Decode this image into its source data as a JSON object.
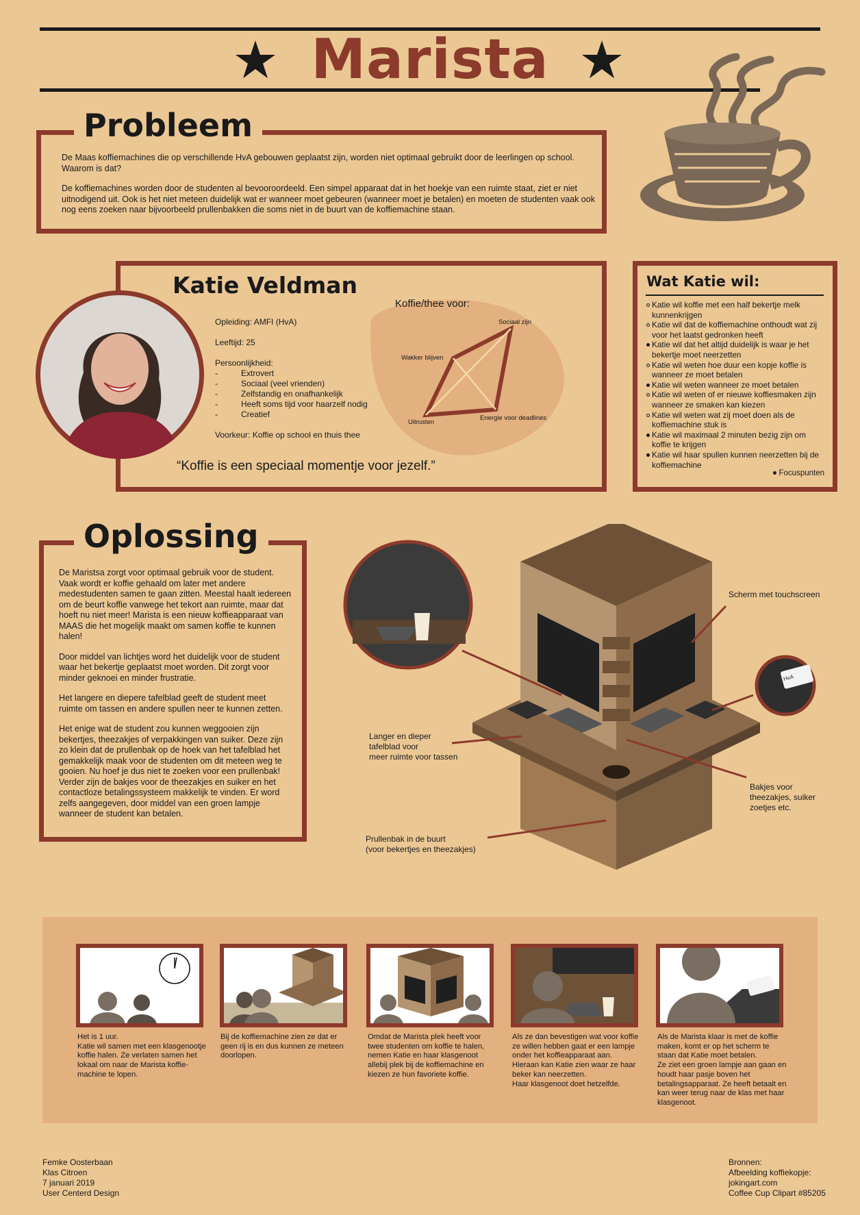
{
  "header": {
    "title": "Marista"
  },
  "probleem": {
    "heading": "Probleem",
    "p1": "De Maas koffiemachines die op verschillende HvA gebouwen geplaatst zijn, worden niet optimaal gebruikt door de leerlingen op school. Waarom is dat?",
    "p2": "De koffiemachines worden door de studenten al bevooroordeeld. Een simpel apparaat dat in het hoekje van een ruimte staat, ziet er niet uitnodigend uit. Ook is het niet meteen duidelijk wat er wanneer moet gebeuren (wanneer moet je betalen) en moeten de studenten vaak ook nog eens zoeken naar bijvoorbeeld prullenbakken die soms niet in de buurt van de koffiemachine staan."
  },
  "persona": {
    "name": "Katie Veldman",
    "opleiding": "Opleiding: AMFI (HvA)",
    "leeftijd": "Leeftijd: 25",
    "persoonlijkheid_label": "Persoonlijkheid:",
    "traits": [
      "Extrovert",
      "Sociaal (veel vrienden)",
      "Zelfstandig en onafhankelijk",
      "Heeft soms tijd voor haarzelf nodig",
      "Creatief"
    ],
    "voorkeur": "Voorkeur: Koffie op school en thuis thee",
    "quote": "“Koffie is een speciaal momentje voor jezelf.”",
    "chart_title": "Koffie/thee voor:",
    "chart_labels": {
      "sociaal": "Sociaal zijn",
      "wakker": "Wakker blijven",
      "uitrusten": "Uitrusten",
      "energie": "Energie voor deadlines"
    }
  },
  "wants": {
    "heading": "Wat Katie wil:",
    "items": [
      {
        "text": "Katie wil koffie met een half bekertje melk kunnenkrijgen",
        "focus": false
      },
      {
        "text": "Katie wil dat de koffiemachine onthoudt wat zij voor het laatst gedronken heeft",
        "focus": false
      },
      {
        "text": "Katie wil dat het altijd duidelijk is waar je het bekertje moet neerzetten",
        "focus": true
      },
      {
        "text": "Katie wil weten hoe duur een kopje koffie is wanneer ze moet betalen",
        "focus": false
      },
      {
        "text": "Katie wil weten wanneer ze moet betalen",
        "focus": true
      },
      {
        "text": "Katie wil weten of er nieuwe koffiesmaken zijn wanneer ze smaken kan kiezen",
        "focus": false
      },
      {
        "text": "Katie wil weten wat zij moet doen als de koffiemachine stuk is",
        "focus": false
      },
      {
        "text": "Katie wil maximaal 2 minuten bezig zijn om koffie te krijgen",
        "focus": true
      },
      {
        "text": "Katie wil haar spullen kunnen neerzetten bij de koffiemachine",
        "focus": true
      }
    ],
    "legend": "Focuspunten"
  },
  "oplossing": {
    "heading": "Oplossing",
    "paragraphs": [
      "De Maristsa zorgt voor optimaal gebruik voor de student. Vaak wordt er koffie gehaald om later met andere medestudenten samen te gaan zitten. Meestal haalt iedereen om de beurt koffie vanwege het tekort aan ruimte, maar dat hoeft nu niet meer! Marista is een nieuw koffieapparaat van MAAS die het mogelijk maakt om samen koffie te kunnen halen!",
      "Door middel van lichtjes word het duidelijk voor de student waar het bekertje geplaatst moet worden. Dit zorgt voor minder geknoei en minder frustratie.",
      "Het langere en diepere tafelblad geeft de student meet ruimte om tassen en andere spullen neer te kunnen zetten.",
      "Het enige wat de student zou kunnen weggooien zijn bekertjes, theezakjes of verpakkingen van suiker. Deze zijn zo klein dat de prullenbak op de hoek van het tafelblad het gemakkelijk maak voor de studenten om dit meteen weg te gooien. Nu hoef je dus niet te zoeken voor een prullenbak! Verder zijn de bakjes voor de theezakjes en suiker en het contactloze betalingssysteem makkelijk te vinden. Er word zelfs aangegeven, door middel van een groen lampje wanneer de student kan betalen."
    ]
  },
  "callouts": {
    "scherm": "Scherm met touchscreen",
    "tafel": [
      "Langer en dieper",
      "tafelblad voor",
      "meer ruimte voor tassen"
    ],
    "bakjes": [
      "Bakjes voor",
      "theezakjes, suiker",
      "zoetjes etc."
    ],
    "prullenbak": [
      "Prullenbak in de buurt",
      "(voor bekertjes en theezakjes)"
    ],
    "card_text": "HvA"
  },
  "storyboard": [
    {
      "caption": [
        "Het is 1 uur.",
        "Katie wil samen met een klasgenootje koffie halen. Ze verlaten samen het lokaal om naar de Marista koffie-machine te lopen."
      ]
    },
    {
      "caption": [
        "Bij de koffiemachine zien ze dat er geen rij is en dus kunnen ze meteen doorlopen."
      ]
    },
    {
      "caption": [
        "Omdat de Marista plek heeft voor twee studenten om koffie te halen, nemen Katie en haar klasgenoot allebij plek bij de koffiemachine en kiezen ze hun favoriete koffie."
      ]
    },
    {
      "caption": [
        "Als ze dan bevestigen wat voor koffie ze willen hebben gaat er een lampje onder het koffieapparaat aan.",
        "Hieraan kan Katie zien waar ze haar beker kan neerzetten.",
        "Haar klasgenoot doet hetzelfde."
      ]
    },
    {
      "caption": [
        "Als de Marista klaar is met de koffie maken, komt er op het scherm te staan dat Katie moet betalen.",
        "Ze ziet een groen lampje aan gaan en houdt haar pasje boven het betalingsapparaat. Ze heeft betaalt en kan weer terug naar de klas met haar klasgenoot."
      ]
    }
  ],
  "footer": {
    "left": [
      "Femke Oosterbaan",
      "Klas Citroen",
      "7 januari 2019",
      "User Centerd Design"
    ],
    "right": [
      "Bronnen:",
      "Afbeelding koffiekopje:",
      "jokingart.com",
      "Coffee Cup Clipart #85205"
    ]
  }
}
